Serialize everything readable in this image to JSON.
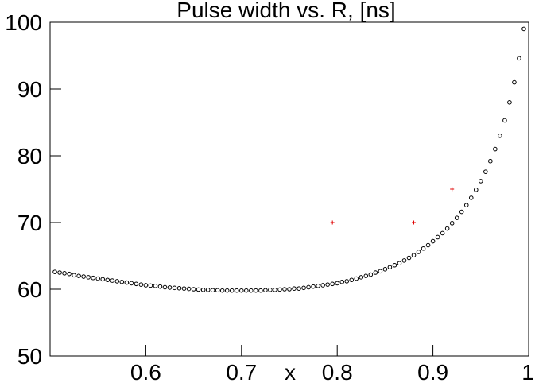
{
  "chart_data": {
    "type": "scatter",
    "title": "Pulse width vs. R, [ns]",
    "x_label": "x",
    "xlim": [
      0.5,
      1.0
    ],
    "xticks": [
      0.6,
      0.7,
      0.8,
      0.9,
      1
    ],
    "ylim": [
      50,
      100
    ],
    "yticks": [
      50,
      60,
      70,
      80,
      90,
      100
    ],
    "series": [
      {
        "color": "#000000",
        "marker": "circle",
        "x": [
          0.505,
          0.51,
          0.515,
          0.52,
          0.525,
          0.53,
          0.535,
          0.54,
          0.545,
          0.55,
          0.555,
          0.56,
          0.565,
          0.57,
          0.575,
          0.58,
          0.585,
          0.59,
          0.595,
          0.6,
          0.605,
          0.61,
          0.615,
          0.62,
          0.625,
          0.63,
          0.635,
          0.64,
          0.645,
          0.65,
          0.655,
          0.66,
          0.665,
          0.67,
          0.675,
          0.68,
          0.685,
          0.69,
          0.695,
          0.7,
          0.705,
          0.71,
          0.715,
          0.72,
          0.725,
          0.73,
          0.735,
          0.74,
          0.745,
          0.75,
          0.755,
          0.76,
          0.765,
          0.77,
          0.775,
          0.78,
          0.785,
          0.79,
          0.795,
          0.8,
          0.805,
          0.81,
          0.815,
          0.82,
          0.825,
          0.83,
          0.835,
          0.84,
          0.845,
          0.85,
          0.855,
          0.86,
          0.865,
          0.87,
          0.875,
          0.88,
          0.885,
          0.89,
          0.895,
          0.9,
          0.905,
          0.91,
          0.915,
          0.92,
          0.925,
          0.93,
          0.935,
          0.94,
          0.945,
          0.95,
          0.955,
          0.96,
          0.965,
          0.97,
          0.975,
          0.98,
          0.985,
          0.99,
          0.995
        ],
        "values": [
          62.6,
          62.5,
          62.4,
          62.3,
          62.1,
          62.0,
          61.9,
          61.8,
          61.7,
          61.6,
          61.5,
          61.4,
          61.3,
          61.2,
          61.1,
          61.0,
          60.9,
          60.8,
          60.7,
          60.6,
          60.55,
          60.5,
          60.4,
          60.3,
          60.25,
          60.2,
          60.15,
          60.1,
          60.05,
          60.0,
          59.95,
          59.9,
          59.9,
          59.85,
          59.85,
          59.8,
          59.8,
          59.8,
          59.8,
          59.8,
          59.8,
          59.8,
          59.8,
          59.8,
          59.85,
          59.9,
          59.9,
          59.95,
          60.0,
          60.0,
          60.1,
          60.1,
          60.2,
          60.3,
          60.4,
          60.5,
          60.6,
          60.7,
          60.8,
          60.9,
          61.1,
          61.2,
          61.4,
          61.6,
          61.8,
          62.0,
          62.2,
          62.5,
          62.7,
          63.0,
          63.3,
          63.6,
          63.9,
          64.3,
          64.7,
          65.1,
          65.6,
          66.1,
          66.6,
          67.2,
          67.8,
          68.4,
          69.1,
          69.9,
          70.7,
          71.6,
          72.6,
          73.7,
          74.9,
          76.2,
          77.6,
          79.2,
          81.0,
          83.0,
          85.3,
          88.0,
          91.0,
          94.6,
          99.0
        ]
      },
      {
        "color": "#e00000",
        "marker": "plus",
        "x": [
          0.795,
          0.88,
          0.92
        ],
        "values": [
          70,
          70,
          75
        ]
      }
    ]
  }
}
